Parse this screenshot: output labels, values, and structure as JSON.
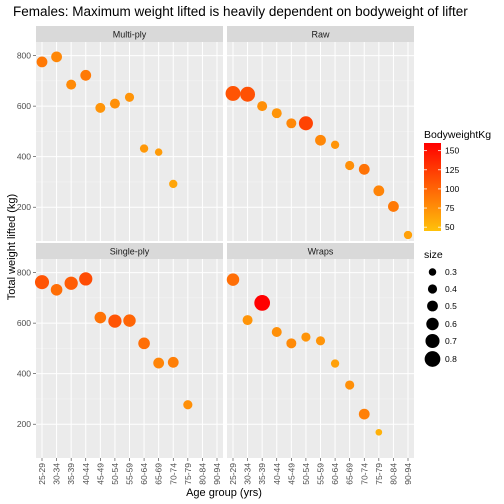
{
  "chart_data": {
    "type": "scatter",
    "title": "Females: Maximum weight lifted is heavily dependent on bodyweight of lifter",
    "xlabel": "Age group (yrs)",
    "ylabel": "Total weight lifted (kg)",
    "categories": [
      "25-29",
      "30-34",
      "35-39",
      "40-44",
      "45-49",
      "50-54",
      "55-59",
      "60-64",
      "65-69",
      "70-74",
      "75-79",
      "80-84",
      "90-94"
    ],
    "y_ticks": [
      200,
      400,
      600,
      800
    ],
    "ylim": [
      90,
      830
    ],
    "grid": true,
    "legend_position": "right",
    "color_legend": {
      "title": "BodyweightKg",
      "min": 45,
      "max": 160,
      "ticks": [
        50,
        75,
        100,
        125,
        150
      ],
      "low_color": "#FFC20A",
      "high_color": "#FF0000"
    },
    "size_legend": {
      "title": "size",
      "values": [
        "0.3",
        "0.4",
        "0.5",
        "0.6",
        "0.7",
        "0.8"
      ]
    },
    "panels": [
      {
        "name": "Multi-ply",
        "points": [
          {
            "x": "25-29",
            "y": 775,
            "weight": 88,
            "size": 0.5
          },
          {
            "x": "30-34",
            "y": 795,
            "weight": 80,
            "size": 0.5
          },
          {
            "x": "35-39",
            "y": 685,
            "weight": 78,
            "size": 0.45
          },
          {
            "x": "40-44",
            "y": 722,
            "weight": 88,
            "size": 0.5
          },
          {
            "x": "45-49",
            "y": 593,
            "weight": 72,
            "size": 0.45
          },
          {
            "x": "50-54",
            "y": 610,
            "weight": 75,
            "size": 0.45
          },
          {
            "x": "55-59",
            "y": 635,
            "weight": 72,
            "size": 0.4
          },
          {
            "x": "60-64",
            "y": 432,
            "weight": 70,
            "size": 0.35
          },
          {
            "x": "65-69",
            "y": 418,
            "weight": 68,
            "size": 0.3
          },
          {
            "x": "70-74",
            "y": 292,
            "weight": 62,
            "size": 0.35
          }
        ]
      },
      {
        "name": "Raw",
        "points": [
          {
            "x": "25-29",
            "y": 650,
            "weight": 110,
            "size": 0.75
          },
          {
            "x": "30-34",
            "y": 647,
            "weight": 112,
            "size": 0.75
          },
          {
            "x": "35-39",
            "y": 600,
            "weight": 75,
            "size": 0.45
          },
          {
            "x": "40-44",
            "y": 572,
            "weight": 72,
            "size": 0.45
          },
          {
            "x": "45-49",
            "y": 532,
            "weight": 80,
            "size": 0.45
          },
          {
            "x": "50-54",
            "y": 532,
            "weight": 120,
            "size": 0.7
          },
          {
            "x": "55-59",
            "y": 465,
            "weight": 80,
            "size": 0.5
          },
          {
            "x": "60-64",
            "y": 447,
            "weight": 72,
            "size": 0.35
          },
          {
            "x": "65-69",
            "y": 365,
            "weight": 75,
            "size": 0.4
          },
          {
            "x": "70-74",
            "y": 350,
            "weight": 92,
            "size": 0.5
          },
          {
            "x": "75-79",
            "y": 265,
            "weight": 82,
            "size": 0.5
          },
          {
            "x": "80-84",
            "y": 203,
            "weight": 88,
            "size": 0.5
          },
          {
            "x": "90-94",
            "y": 90,
            "weight": 65,
            "size": 0.35
          }
        ]
      },
      {
        "name": "Single-ply",
        "points": [
          {
            "x": "25-29",
            "y": 762,
            "weight": 110,
            "size": 0.7
          },
          {
            "x": "30-34",
            "y": 732,
            "weight": 95,
            "size": 0.55
          },
          {
            "x": "35-39",
            "y": 758,
            "weight": 105,
            "size": 0.65
          },
          {
            "x": "40-44",
            "y": 775,
            "weight": 115,
            "size": 0.65
          },
          {
            "x": "45-49",
            "y": 622,
            "weight": 92,
            "size": 0.55
          },
          {
            "x": "50-54",
            "y": 608,
            "weight": 110,
            "size": 0.65
          },
          {
            "x": "55-59",
            "y": 610,
            "weight": 100,
            "size": 0.6
          },
          {
            "x": "60-64",
            "y": 520,
            "weight": 95,
            "size": 0.55
          },
          {
            "x": "65-69",
            "y": 442,
            "weight": 82,
            "size": 0.5
          },
          {
            "x": "70-74",
            "y": 445,
            "weight": 85,
            "size": 0.5
          },
          {
            "x": "75-79",
            "y": 277,
            "weight": 75,
            "size": 0.4
          }
        ]
      },
      {
        "name": "Wraps",
        "points": [
          {
            "x": "25-29",
            "y": 772,
            "weight": 95,
            "size": 0.6
          },
          {
            "x": "30-34",
            "y": 612,
            "weight": 72,
            "size": 0.45
          },
          {
            "x": "35-39",
            "y": 680,
            "weight": 160,
            "size": 0.8
          },
          {
            "x": "40-44",
            "y": 565,
            "weight": 75,
            "size": 0.45
          },
          {
            "x": "45-49",
            "y": 520,
            "weight": 78,
            "size": 0.45
          },
          {
            "x": "50-54",
            "y": 545,
            "weight": 72,
            "size": 0.4
          },
          {
            "x": "55-59",
            "y": 530,
            "weight": 72,
            "size": 0.4
          },
          {
            "x": "60-64",
            "y": 440,
            "weight": 65,
            "size": 0.35
          },
          {
            "x": "65-69",
            "y": 355,
            "weight": 75,
            "size": 0.4
          },
          {
            "x": "70-74",
            "y": 240,
            "weight": 85,
            "size": 0.5
          },
          {
            "x": "75-79",
            "y": 168,
            "weight": 55,
            "size": 0.25
          }
        ]
      }
    ]
  }
}
